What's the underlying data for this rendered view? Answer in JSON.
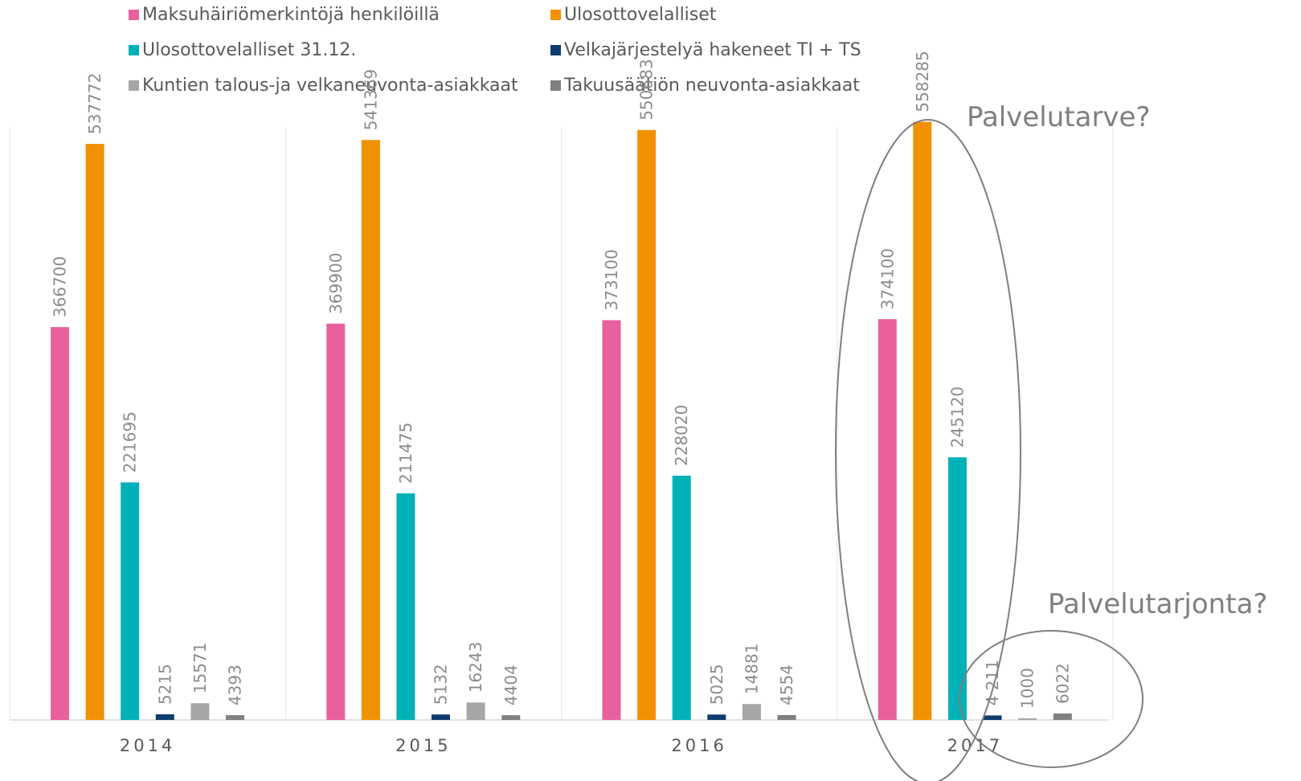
{
  "chart_data": {
    "type": "bar",
    "title": "",
    "xlabel": "",
    "ylabel": "",
    "categories": [
      "2014",
      "2015",
      "2016",
      "2017"
    ],
    "ylim": [
      0,
      600000
    ],
    "grid": false,
    "legend_position": "top",
    "series": [
      {
        "name": "Maksuhäiriömerkintöjä henkilöillä",
        "color": "#e8619d",
        "values": [
          366700,
          369900,
          373100,
          374100
        ],
        "labels": [
          "366700",
          "369900",
          "373100",
          "374100"
        ]
      },
      {
        "name": "Ulosottovelalliset",
        "color": "#f29100",
        "values": [
          537772,
          541369,
          550683,
          558285
        ],
        "labels": [
          "537772",
          "541369",
          "550683",
          "558285"
        ]
      },
      {
        "name": "Ulosottovelalliset 31.12.",
        "color": "#00b1b8",
        "values": [
          221695,
          211475,
          228020,
          245120
        ],
        "labels": [
          "221695",
          "211475",
          "228020",
          "245120"
        ]
      },
      {
        "name": "Velkajärjestelyä hakeneet TI + TS",
        "color": "#0f3c6e",
        "values": [
          5215,
          5132,
          5025,
          4211
        ],
        "labels": [
          "5215",
          "5132",
          "5025",
          "4 211"
        ]
      },
      {
        "name": "Kuntien talous-ja velkaneuvonta-asiakkaat",
        "color": "#a6a6a6",
        "values": [
          15571,
          16243,
          14881,
          1000
        ],
        "labels": [
          "15571",
          "16243",
          "14881",
          "1000"
        ]
      },
      {
        "name": "Takuusäätiön neuvonta-asiakkaat",
        "color": "#808080",
        "values": [
          4393,
          4404,
          4554,
          6022
        ],
        "labels": [
          "4393",
          "4404",
          "4554",
          "6022"
        ]
      }
    ],
    "annotations": [
      {
        "text": "Palvelutarve?",
        "shape": "ellipse",
        "target": "2017 Maksuhäiriömerkintöjä henkilöillä, Ulosottovelalliset, Ulosottovelalliset 31.12."
      },
      {
        "text": "Palvelutarjonta?",
        "shape": "ellipse",
        "target": "2017 Velkajärjestelyä hakeneet TI + TS, Kuntien talous-ja velkaneuvonta-asiakkaat, Takuusäätiön neuvonta-asiakkaat"
      }
    ]
  }
}
